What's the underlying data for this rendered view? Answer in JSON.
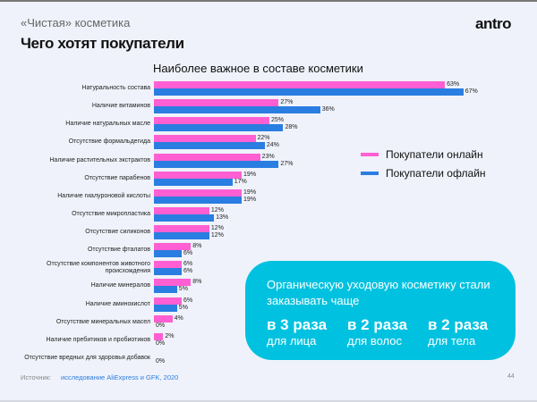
{
  "header": {
    "kicker": "«Чистая» косметика",
    "title": "Чего хотят покупатели",
    "logo": "antro"
  },
  "colors": {
    "online": "#ff5fd2",
    "offline": "#2a7de1",
    "callout": "#00c2e0",
    "background": "#eff2fa"
  },
  "chart_data": {
    "type": "bar",
    "orientation": "horizontal",
    "title": "Наиболее важное в составе косметики",
    "legend_placement": "right",
    "categories": [
      "Натуральность состава",
      "Наличие витаминов",
      "Наличие натуральных масле",
      "Отсутствие формальдегида",
      "Наличие растительных экстрактов",
      "Отсутствие парабенов",
      "Наличие гиалуроновой кислоты",
      "Отсутствие микропластика",
      "Отсутствие силиконов",
      "Отсутствие фталатов",
      "Отсутствие компонентов животного происхождения",
      "Наличие минералов",
      "Наличие аминокислот",
      "Отсутствие минеральных масел",
      "Наличие пребитиков и пробиотиков",
      "Отсутствие вредных для здоровья добавок"
    ],
    "series": [
      {
        "name": "Покупатели онлайн",
        "values": [
          63,
          27,
          25,
          22,
          23,
          19,
          19,
          12,
          12,
          8,
          6,
          8,
          6,
          4,
          2,
          null
        ]
      },
      {
        "name": "Покупатели офлайн",
        "values": [
          67,
          36,
          28,
          24,
          27,
          17,
          19,
          13,
          12,
          6,
          6,
          5,
          5,
          0,
          0,
          0
        ]
      }
    ],
    "value_suffix": "%"
  },
  "callout": {
    "text": "Органическую уходовую косметику стали заказывать чаще",
    "stats": [
      {
        "value": "в 3 раза",
        "label": "для лица"
      },
      {
        "value": "в 2 раза",
        "label": "для волос"
      },
      {
        "value": "в 2 раза",
        "label": "для тела"
      }
    ]
  },
  "footer": {
    "source_label": "Источник:",
    "source": "исследование AliExpress и GFK, 2020",
    "page": "44"
  }
}
